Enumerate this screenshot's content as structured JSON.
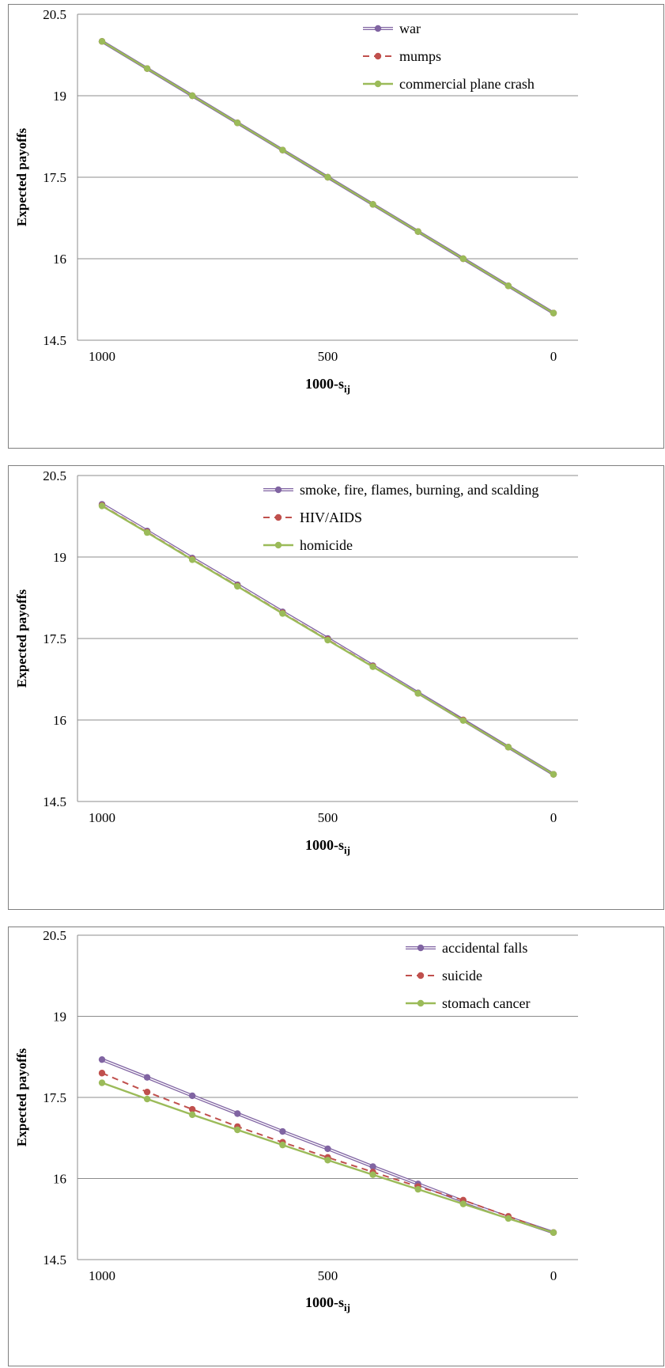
{
  "colors": {
    "purple": "#8064a2",
    "red": "#c0504d",
    "green": "#9bbb59",
    "grid": "#8c8c8c"
  },
  "chart_data": [
    {
      "type": "line",
      "ylabel": "Expected payoffs",
      "xlabel_main": "1000-s",
      "xlabel_sub": "ij",
      "ylim": [
        14.5,
        20.5
      ],
      "yticks": [
        "14.5",
        "16",
        "17.5",
        "19",
        "20.5"
      ],
      "xticks": [
        "1000",
        "500",
        "0"
      ],
      "legend_position": "top-right",
      "x": [
        1000,
        900,
        800,
        700,
        600,
        500,
        400,
        300,
        200,
        100,
        0
      ],
      "series": [
        {
          "name": "war",
          "color": "#8064a2",
          "style": "double",
          "values": [
            20.0,
            19.5,
            19.0,
            18.5,
            18.0,
            17.5,
            17.0,
            16.5,
            16.0,
            15.5,
            15.0
          ]
        },
        {
          "name": "mumps",
          "color": "#c0504d",
          "style": "dashed",
          "values": [
            20.0,
            19.5,
            19.0,
            18.5,
            18.0,
            17.5,
            17.0,
            16.5,
            16.0,
            15.5,
            15.0
          ]
        },
        {
          "name": "commercial plane crash",
          "color": "#9bbb59",
          "style": "solid",
          "values": [
            20.0,
            19.5,
            19.0,
            18.5,
            18.0,
            17.5,
            17.0,
            16.5,
            16.0,
            15.5,
            15.0
          ]
        }
      ]
    },
    {
      "type": "line",
      "ylabel": "Expected payoffs",
      "xlabel_main": "1000-s",
      "xlabel_sub": "ij",
      "ylim": [
        14.5,
        20.5
      ],
      "yticks": [
        "14.5",
        "16",
        "17.5",
        "19",
        "20.5"
      ],
      "xticks": [
        "1000",
        "500",
        "0"
      ],
      "legend_position": "top-right",
      "x": [
        1000,
        900,
        800,
        700,
        600,
        500,
        400,
        300,
        200,
        100,
        0
      ],
      "series": [
        {
          "name": "smoke, fire, flames, burning, and scalding",
          "color": "#8064a2",
          "style": "double",
          "values": [
            19.97,
            19.48,
            18.98,
            18.49,
            17.99,
            17.5,
            17.0,
            16.5,
            16.0,
            15.5,
            15.0
          ]
        },
        {
          "name": "HIV/AIDS",
          "color": "#c0504d",
          "style": "dashed",
          "values": [
            19.95,
            19.46,
            18.96,
            18.47,
            17.97,
            17.48,
            16.99,
            16.49,
            16.0,
            15.5,
            15.0
          ]
        },
        {
          "name": "homicide",
          "color": "#9bbb59",
          "style": "solid",
          "values": [
            19.94,
            19.45,
            18.95,
            18.46,
            17.96,
            17.47,
            16.98,
            16.49,
            15.99,
            15.5,
            15.0
          ]
        }
      ]
    },
    {
      "type": "line",
      "ylabel": "Expected payoffs",
      "xlabel_main": "1000-s",
      "xlabel_sub": "ij",
      "ylim": [
        14.5,
        20.5
      ],
      "yticks": [
        "14.5",
        "16",
        "17.5",
        "19",
        "20.5"
      ],
      "xticks": [
        "1000",
        "500",
        "0"
      ],
      "legend_position": "top-right",
      "x": [
        1000,
        900,
        800,
        700,
        600,
        500,
        400,
        300,
        200,
        100,
        0
      ],
      "series": [
        {
          "name": "accidental falls",
          "color": "#8064a2",
          "style": "double",
          "values": [
            18.2,
            17.87,
            17.53,
            17.2,
            16.87,
            16.55,
            16.22,
            15.9,
            15.58,
            15.28,
            15.0
          ]
        },
        {
          "name": "suicide",
          "color": "#c0504d",
          "style": "dashed",
          "values": [
            17.95,
            17.6,
            17.28,
            16.96,
            16.67,
            16.39,
            16.12,
            15.85,
            15.6,
            15.3,
            15.0
          ]
        },
        {
          "name": "stomach cancer",
          "color": "#9bbb59",
          "style": "solid",
          "values": [
            17.77,
            17.47,
            17.18,
            16.9,
            16.62,
            16.34,
            16.07,
            15.8,
            15.53,
            15.26,
            15.0
          ]
        }
      ]
    }
  ]
}
